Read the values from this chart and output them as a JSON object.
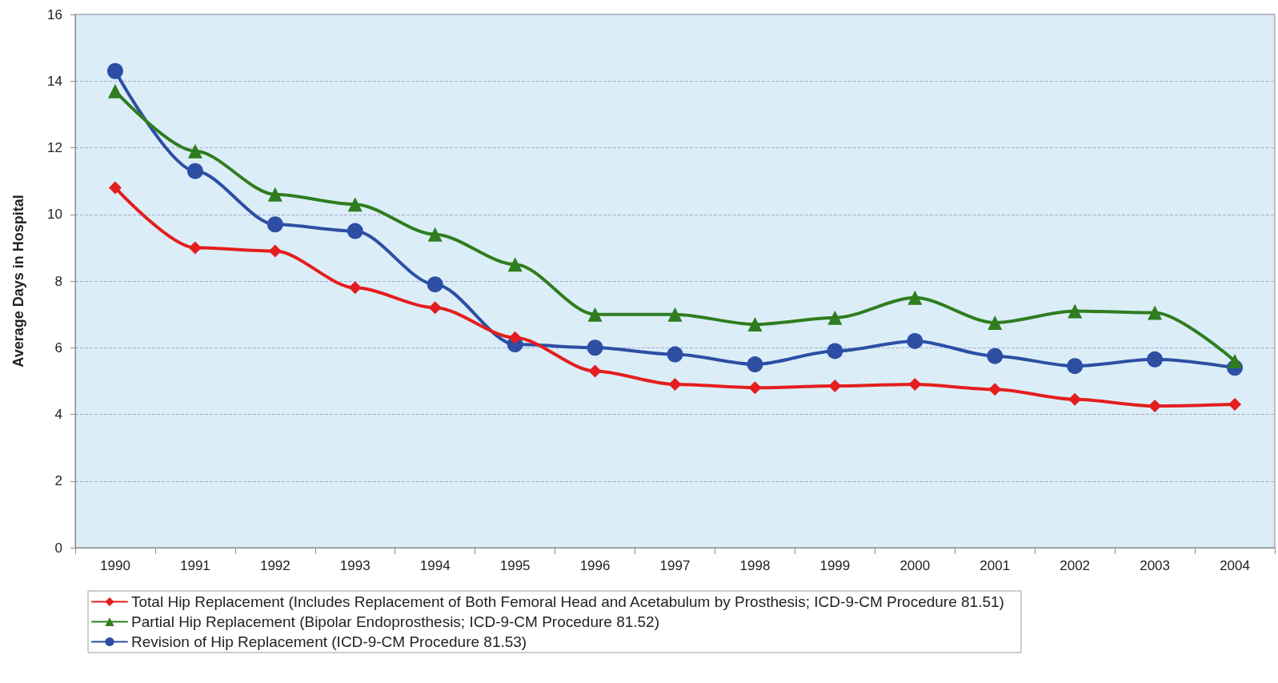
{
  "chart_data": {
    "type": "line",
    "ylabel": "Average Days in Hospital",
    "categories": [
      "1990",
      "1991",
      "1992",
      "1993",
      "1994",
      "1995",
      "1996",
      "1997",
      "1998",
      "1999",
      "2000",
      "2001",
      "2002",
      "2003",
      "2004"
    ],
    "series": [
      {
        "name": "Total Hip Replacement (Includes Replacement of Both Femoral Head and Acetabulum by Prosthesis; ICD-9-CM Procedure 81.51)",
        "color": "#e41e1e",
        "marker": "diamond",
        "values": [
          10.8,
          9.0,
          8.9,
          7.8,
          7.2,
          6.3,
          5.3,
          4.9,
          4.8,
          4.85,
          4.9,
          4.75,
          4.45,
          4.25,
          4.3
        ]
      },
      {
        "name": "Partial Hip Replacement (Bipolar Endoprosthesis; ICD-9-CM Procedure 81.52)",
        "color": "#2f7d1f",
        "marker": "triangle",
        "values": [
          13.7,
          11.9,
          10.6,
          10.3,
          9.4,
          8.5,
          7.0,
          7.0,
          6.7,
          6.9,
          7.5,
          6.75,
          7.1,
          7.05,
          5.6
        ]
      },
      {
        "name": "Revision of Hip Replacement (ICD-9-CM Procedure 81.53)",
        "color": "#2d4ea3",
        "marker": "circle",
        "values": [
          14.3,
          11.3,
          9.7,
          9.5,
          7.9,
          6.1,
          6.0,
          5.8,
          5.5,
          5.9,
          6.2,
          5.75,
          5.45,
          5.65,
          5.4
        ]
      }
    ],
    "ylim": [
      0,
      16
    ],
    "yticks": [
      0,
      2,
      4,
      6,
      8,
      10,
      12,
      14,
      16
    ],
    "grid": "y",
    "legend": "bottom",
    "line_style": "solid"
  }
}
